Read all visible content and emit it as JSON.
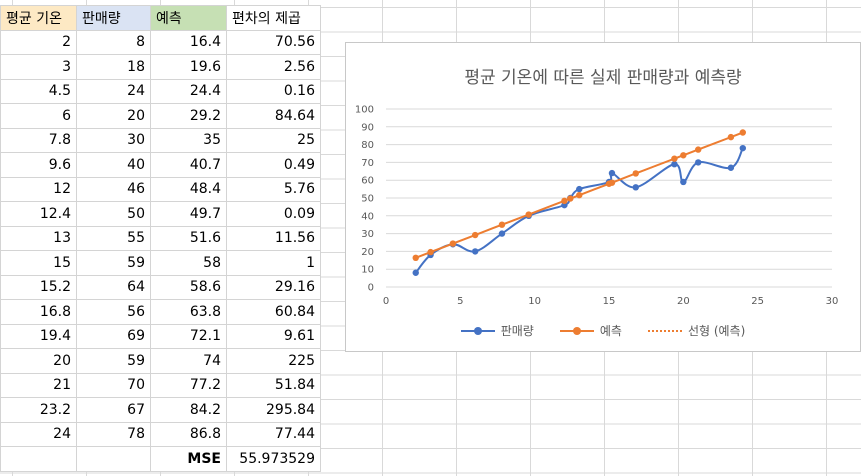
{
  "sheet": {
    "headers": [
      "평균 기온",
      "판매량",
      "예측",
      "편차의 제곱"
    ],
    "rows": [
      [
        "2",
        "8",
        "16.4",
        "70.56"
      ],
      [
        "3",
        "18",
        "19.6",
        "2.56"
      ],
      [
        "4.5",
        "24",
        "24.4",
        "0.16"
      ],
      [
        "6",
        "20",
        "29.2",
        "84.64"
      ],
      [
        "7.8",
        "30",
        "35",
        "25"
      ],
      [
        "9.6",
        "40",
        "40.7",
        "0.49"
      ],
      [
        "12",
        "46",
        "48.4",
        "5.76"
      ],
      [
        "12.4",
        "50",
        "49.7",
        "0.09"
      ],
      [
        "13",
        "55",
        "51.6",
        "11.56"
      ],
      [
        "15",
        "59",
        "58",
        "1"
      ],
      [
        "15.2",
        "64",
        "58.6",
        "29.16"
      ],
      [
        "16.8",
        "56",
        "63.8",
        "60.84"
      ],
      [
        "19.4",
        "69",
        "72.1",
        "9.61"
      ],
      [
        "20",
        "59",
        "74",
        "225"
      ],
      [
        "21",
        "70",
        "77.2",
        "51.84"
      ],
      [
        "23.2",
        "67",
        "84.2",
        "295.84"
      ],
      [
        "24",
        "78",
        "86.8",
        "77.44"
      ]
    ],
    "mse_label": "MSE",
    "mse_value": "55.973529"
  },
  "chart_data": {
    "type": "line",
    "title": "평균 기온에 따른 실제 판매량과 예측량",
    "xlim": [
      0,
      30
    ],
    "ylim": [
      0,
      100
    ],
    "x_ticks": [
      0,
      5,
      10,
      15,
      20,
      25,
      30
    ],
    "y_ticks": [
      0,
      10,
      20,
      30,
      40,
      50,
      60,
      70,
      80,
      90,
      100
    ],
    "x": [
      2,
      3,
      4.5,
      6,
      7.8,
      9.6,
      12,
      12.4,
      13,
      15,
      15.2,
      16.8,
      19.4,
      20,
      21,
      23.2,
      24
    ],
    "series": [
      {
        "name": "판매량",
        "color": "#4472c4",
        "values": [
          8,
          18,
          24,
          20,
          30,
          40,
          46,
          50,
          55,
          59,
          64,
          56,
          69,
          59,
          70,
          67,
          78
        ]
      },
      {
        "name": "예측",
        "color": "#ed7d31",
        "values": [
          16.4,
          19.6,
          24.4,
          29.2,
          35,
          40.7,
          48.4,
          49.7,
          51.6,
          58,
          58.6,
          63.8,
          72.1,
          74,
          77.2,
          84.2,
          86.8
        ]
      }
    ],
    "trendline": {
      "name": "선형 (예측)",
      "color": "#ed7d31",
      "of_series": "예측"
    },
    "grid": true,
    "legend": "bottom"
  }
}
